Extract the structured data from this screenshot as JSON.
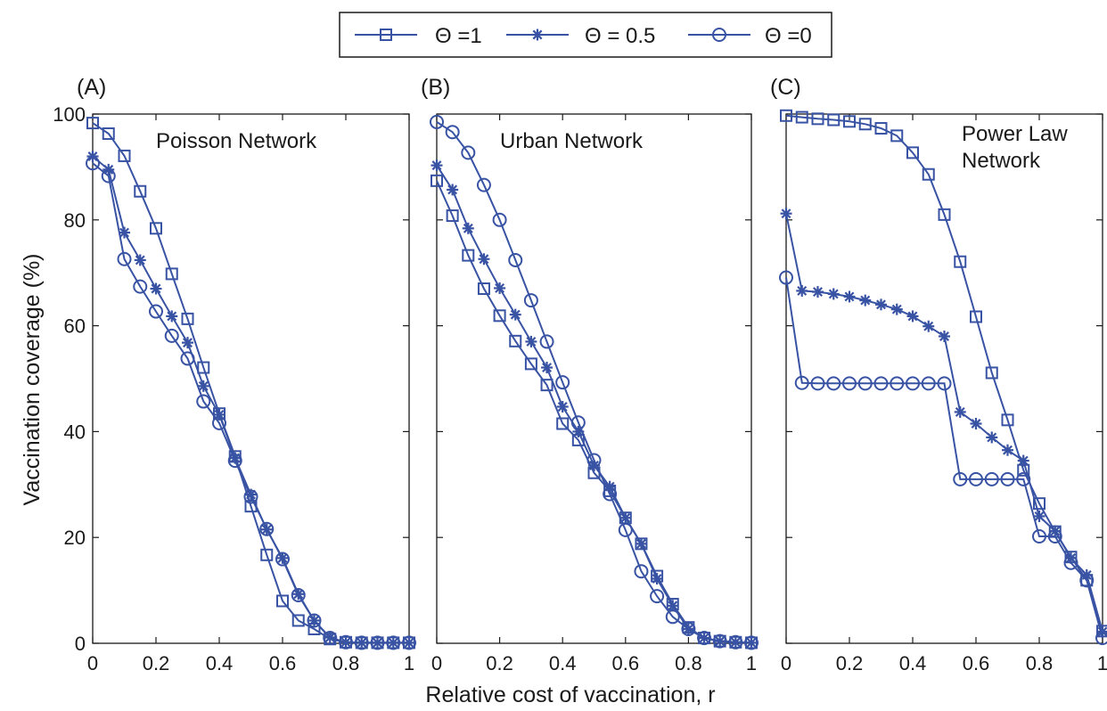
{
  "colors": {
    "series": "#3953a4",
    "axis": "#1a1a1a",
    "background": "#ffffff"
  },
  "legend": {
    "placement": "top-center",
    "entries": [
      {
        "label": "Θ =1",
        "marker": "square"
      },
      {
        "label": "Θ = 0.5",
        "marker": "asterisk"
      },
      {
        "label": "Θ =0",
        "marker": "circle"
      }
    ]
  },
  "xlabel": "Relative cost of vaccination, r",
  "ylabel": "Vaccination coverage (%)",
  "chart_data": [
    {
      "type": "line",
      "panel_label": "(A)",
      "title": "Poisson Network",
      "xlim": [
        0,
        1
      ],
      "ylim": [
        0,
        100
      ],
      "xticks": [
        0,
        0.2,
        0.4,
        0.6,
        0.8,
        1
      ],
      "xtick_labels": [
        "0",
        "0.2",
        "0.4",
        "0.6",
        "0.8",
        "1"
      ],
      "yticks": [
        0,
        20,
        40,
        60,
        80,
        100
      ],
      "ytick_labels": [
        "0",
        "20",
        "40",
        "60",
        "80",
        "100"
      ],
      "x": [
        0,
        0.05,
        0.1,
        0.15,
        0.2,
        0.25,
        0.3,
        0.35,
        0.4,
        0.45,
        0.5,
        0.55,
        0.6,
        0.65,
        0.7,
        0.75,
        0.8,
        0.85,
        0.9,
        0.95,
        1
      ],
      "series": [
        {
          "name": "Θ =1",
          "marker": "square",
          "values": [
            98.3,
            96.3,
            92.1,
            85.4,
            78.4,
            69.8,
            61.3,
            52.1,
            43.4,
            35.3,
            25.9,
            16.7,
            8.0,
            4.3,
            2.7,
            0.8,
            0.2,
            0.1,
            0.1,
            0.1,
            0.1
          ]
        },
        {
          "name": "Θ = 0.5",
          "marker": "asterisk",
          "values": [
            92.0,
            89.5,
            77.6,
            72.4,
            67.0,
            61.8,
            56.8,
            48.6,
            43.2,
            35.0,
            28.1,
            21.5,
            16.1,
            9.3,
            4.3,
            1.1,
            0.2,
            0.1,
            0.1,
            0.1,
            0.1
          ]
        },
        {
          "name": "Θ =0",
          "marker": "circle",
          "values": [
            90.7,
            88.3,
            72.6,
            67.4,
            62.7,
            58.1,
            53.8,
            45.7,
            41.6,
            34.5,
            27.7,
            21.6,
            15.9,
            9.1,
            4.3,
            1.0,
            0.2,
            0.1,
            0.1,
            0.1,
            0.1
          ]
        }
      ]
    },
    {
      "type": "line",
      "panel_label": "(B)",
      "title": "Urban Network",
      "xlim": [
        0,
        1
      ],
      "ylim": [
        0,
        100
      ],
      "xticks": [
        0,
        0.2,
        0.4,
        0.6,
        0.8,
        1
      ],
      "xtick_labels": [
        "0",
        "0.2",
        "0.4",
        "0.6",
        "0.8",
        "1"
      ],
      "yticks": [
        0,
        20,
        40,
        60,
        80,
        100
      ],
      "ytick_labels": [],
      "x": [
        0,
        0.05,
        0.1,
        0.15,
        0.2,
        0.25,
        0.3,
        0.35,
        0.4,
        0.45,
        0.5,
        0.55,
        0.6,
        0.65,
        0.7,
        0.75,
        0.8,
        0.85,
        0.9,
        0.95,
        1
      ],
      "series": [
        {
          "name": "Θ =1",
          "marker": "square",
          "values": [
            87.4,
            80.8,
            73.3,
            67.0,
            61.9,
            57.1,
            52.8,
            48.8,
            41.5,
            38.4,
            32.2,
            28.8,
            23.7,
            18.8,
            12.7,
            7.4,
            3.0,
            1.0,
            0.4,
            0.2,
            0.1
          ]
        },
        {
          "name": "Θ = 0.5",
          "marker": "asterisk",
          "values": [
            90.3,
            85.7,
            78.4,
            72.6,
            67.1,
            62.1,
            57.0,
            52.1,
            44.7,
            40.0,
            33.6,
            29.6,
            23.7,
            18.8,
            12.2,
            7.1,
            2.7,
            1.0,
            0.4,
            0.2,
            0.1
          ]
        },
        {
          "name": "Θ =0",
          "marker": "circle",
          "values": [
            98.5,
            96.6,
            92.7,
            86.6,
            80.0,
            72.4,
            64.8,
            57.0,
            49.3,
            41.7,
            34.6,
            28.2,
            21.4,
            13.6,
            8.9,
            5.0,
            2.7,
            1.0,
            0.4,
            0.2,
            0.1
          ]
        }
      ]
    },
    {
      "type": "line",
      "panel_label": "(C)",
      "title": "Power Law\nNetwork",
      "xlim": [
        0,
        1
      ],
      "ylim": [
        0,
        100
      ],
      "xticks": [
        0,
        0.2,
        0.4,
        0.6,
        0.8,
        1
      ],
      "xtick_labels": [
        "0",
        "0.2",
        "0.4",
        "0.6",
        "0.8",
        "1"
      ],
      "yticks": [
        0,
        20,
        40,
        60,
        80,
        100
      ],
      "ytick_labels": [],
      "x": [
        0,
        0.05,
        0.1,
        0.15,
        0.2,
        0.25,
        0.3,
        0.35,
        0.4,
        0.45,
        0.5,
        0.55,
        0.6,
        0.65,
        0.7,
        0.75,
        0.8,
        0.85,
        0.9,
        0.95,
        1
      ],
      "series": [
        {
          "name": "Θ =1",
          "marker": "square",
          "values": [
            99.7,
            99.4,
            99.1,
            98.9,
            98.6,
            98.1,
            97.3,
            95.9,
            92.7,
            88.6,
            81.0,
            72.1,
            61.7,
            51.1,
            42.2,
            32.7,
            26.4,
            21.1,
            16.3,
            11.9,
            2.3
          ]
        },
        {
          "name": "Θ = 0.5",
          "marker": "asterisk",
          "values": [
            81.2,
            66.6,
            66.4,
            66.0,
            65.5,
            64.8,
            64.0,
            63.1,
            61.8,
            59.9,
            58.0,
            43.7,
            41.5,
            38.9,
            36.5,
            34.5,
            24.0,
            21.2,
            16.1,
            12.9,
            2.2
          ]
        },
        {
          "name": "Θ =0",
          "marker": "circle",
          "values": [
            69.1,
            49.2,
            49.1,
            49.1,
            49.1,
            49.1,
            49.1,
            49.1,
            49.1,
            49.1,
            49.1,
            31.0,
            31.0,
            31.0,
            31.0,
            31.0,
            20.2,
            20.2,
            15.2,
            11.9,
            1.0
          ]
        }
      ]
    }
  ]
}
